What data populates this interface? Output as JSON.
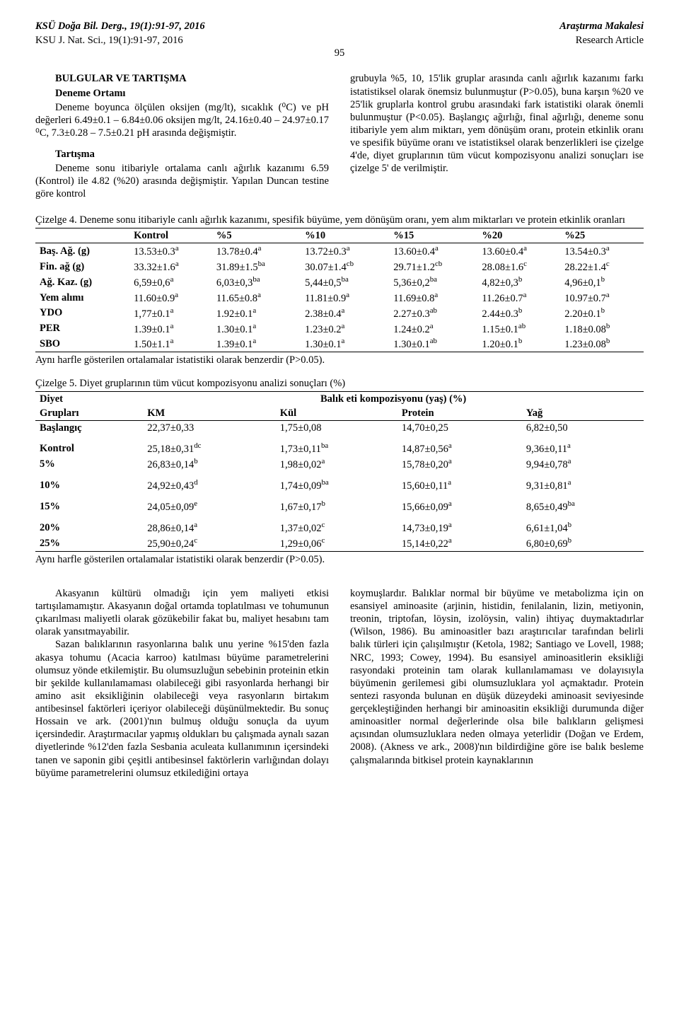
{
  "header": {
    "left1_bold": "KSÜ Doğa Bil. Derg., 19(1):91-97, 2016",
    "left2": "KSU J. Nat. Sci., 19(1):91-97, 2016",
    "right1": "Araştırma Makalesi",
    "right2": "Research Article",
    "page_num": "95"
  },
  "left_col": {
    "title1": "BULGULAR VE TARTIŞMA",
    "title2": "Deneme Ortamı",
    "p1": "Deneme boyunca ölçülen oksijen (mg/lt), sıcaklık (⁰C) ve pH değerleri 6.49±0.1 – 6.84±0.06 oksijen mg/lt, 24.16±0.40 – 24.97±0.17 ⁰C, 7.3±0.28 – 7.5±0.21 pH arasında değişmiştir.",
    "title3": "Tartışma",
    "p2": "Deneme sonu itibariyle ortalama canlı ağırlık kazanımı 6.59 (Kontrol) ile 4.82 (%20) arasında değişmiştir. Yapılan Duncan testine göre kontrol"
  },
  "right_col": {
    "p1": "grubuyla %5, 10, 15'lik gruplar arasında canlı ağırlık kazanımı farkı istatistiksel olarak önemsiz bulunmuştur (P>0.05), buna karşın %20 ve 25'lik gruplarla kontrol grubu arasındaki fark istatistiki olarak önemli bulunmuştur (P<0.05). Başlangıç ağırlığı, final ağırlığı, deneme sonu itibariyle yem alım miktarı, yem dönüşüm oranı, protein etkinlik oranı ve spesifik büyüme oranı ve istatistiksel olarak benzerlikleri ise çizelge 4'de, diyet gruplarının tüm vücut kompozisyonu analizi sonuçları ise çizelge 5' de verilmiştir."
  },
  "table4": {
    "caption": "Çizelge 4. Deneme sonu itibariyle canlı ağırlık kazanımı, spesifik büyüme, yem dönüşüm oranı, yem alım miktarları ve protein etkinlik oranları",
    "headers": [
      "",
      "Kontrol",
      "%5",
      "%10",
      "%15",
      "%20",
      "%25"
    ],
    "rows": [
      {
        "label": "Baş. Ağ. (g)",
        "cells": [
          "13.53±0.3",
          "13.78±0.4",
          "13.72±0.3",
          "13.60±0.4",
          "13.60±0.4",
          "13.54±0.3"
        ],
        "sups": [
          "a",
          "a",
          "a",
          "a",
          "a",
          "a"
        ]
      },
      {
        "label": "Fin. ağ (g)",
        "cells": [
          "33.32±1.6",
          "31.89±1.5",
          "30.07±1.4",
          "29.71±1.2",
          "28.08±1.6",
          "28.22±1.4"
        ],
        "sups": [
          "a",
          "ba",
          "cb",
          "cb",
          "c",
          "c"
        ]
      },
      {
        "label": "Ağ. Kaz. (g)",
        "cells": [
          "6,59±0,6",
          "6,03±0,3",
          "5,44±0,5",
          "5,36±0,2",
          "4,82±0,3",
          "4,96±0,1"
        ],
        "sups": [
          "a",
          "ba",
          "ba",
          "ba",
          "b",
          "b"
        ]
      },
      {
        "label": "Yem alımı",
        "cells": [
          "11.60±0.9",
          "11.65±0.8",
          "11.81±0.9",
          "11.69±0.8",
          "11.26±0.7",
          "10.97±0.7"
        ],
        "sups": [
          "a",
          "a",
          "a",
          "a",
          "a",
          "a"
        ]
      },
      {
        "label": "YDO",
        "cells": [
          "1,77±0.1",
          "1.92±0.1",
          "2.38±0.4",
          "2.27±0.3",
          "2.44±0.3",
          "2.20±0.1"
        ],
        "sups": [
          "a",
          "a",
          "a",
          "ab",
          "b",
          "b"
        ]
      },
      {
        "label": "PER",
        "cells": [
          "1.39±0.1",
          "1.30±0.1",
          "1.23±0.2",
          "1.24±0.2",
          "1.15±0.1",
          "1.18±0.08"
        ],
        "sups": [
          "a",
          "a",
          "a",
          "a",
          "ab",
          "b"
        ]
      },
      {
        "label": "SBO",
        "cells": [
          "1.50±1.1",
          "1.39±0.1",
          "1.30±0.1",
          "1.30±0.1",
          "1.20±0.1",
          "1.23±0.08"
        ],
        "sups": [
          "a",
          "a",
          "a",
          "ab",
          "b",
          "b"
        ]
      }
    ],
    "footnote": "Aynı harfle gösterilen ortalamalar istatistiki olarak benzerdir (P>0.05)."
  },
  "table5": {
    "caption": "Çizelge 5. Diyet gruplarının tüm vücut kompozisyonu analizi sonuçları (%)",
    "h1_left": "Diyet",
    "h1_right": "Balık eti kompozisyonu (yaş) (%)",
    "h2": [
      "Grupları",
      "KM",
      "Kül",
      "Protein",
      "Yağ"
    ],
    "rows": [
      {
        "label": "Başlangıç",
        "cells": [
          "22,37±0,33",
          "1,75±0,08",
          "14,70±0,25",
          "6,82±0,50"
        ],
        "sups": [
          "",
          "",
          "",
          ""
        ]
      },
      {
        "label": "Kontrol",
        "cells": [
          "25,18±0,31",
          "1,73±0,11",
          "14,87±0,56",
          "9,36±0,11"
        ],
        "sups": [
          "dc",
          "ba",
          "a",
          "a"
        ]
      },
      {
        "label": "5%",
        "cells": [
          "26,83±0,14",
          "1,98±0,02",
          "15,78±0,20",
          "9,94±0,78"
        ],
        "sups": [
          "b",
          "a",
          "a",
          "a"
        ]
      },
      {
        "label": "10%",
        "cells": [
          "24,92±0,43",
          "1,74±0,09",
          "15,60±0,11",
          "9,31±0,81"
        ],
        "sups": [
          "d",
          "ba",
          "a",
          "a"
        ]
      },
      {
        "label": "15%",
        "cells": [
          "24,05±0,09",
          "1,67±0,17",
          "15,66±0,09",
          "8,65±0,49"
        ],
        "sups": [
          "e",
          "b",
          "a",
          "ba"
        ]
      },
      {
        "label": "20%",
        "cells": [
          "28,86±0,14",
          "1,37±0,02",
          "14,73±0,19",
          "6,61±1,04"
        ],
        "sups": [
          "a",
          "c",
          "a",
          "b"
        ]
      },
      {
        "label": "25%",
        "cells": [
          "25,90±0,24",
          "1,29±0,06",
          "15,14±0,22",
          "6,80±0,69"
        ],
        "sups": [
          "c",
          "c",
          "a",
          "b"
        ]
      }
    ],
    "footnote": "Aynı harfle gösterilen ortalamalar istatistiki olarak benzerdir (P>0.05)."
  },
  "bottom_left": {
    "p1": "Akasyanın kültürü olmadığı için yem maliyeti etkisi tartışılamamıştır. Akasyanın doğal ortamda toplatılması ve tohumunun çıkarılması maliyetli olarak gözükebilir fakat bu, maliyet hesabını tam olarak yansıtmayabilir.",
    "p2": "Sazan balıklarının rasyonlarına balık unu yerine %15'den fazla akasya tohumu (Acacia karroo) katılması büyüme parametrelerini olumsuz yönde etkilemiştir. Bu olumsuzluğun sebebinin proteinin etkin bir şekilde kullanılamaması olabileceği gibi rasyonlarda herhangi bir amino asit eksikliğinin olabileceği veya rasyonların birtakım antibesinsel faktörleri içeriyor olabileceği düşünülmektedir. Bu sonuç Hossain ve ark. (2001)'nın bulmuş olduğu sonuçla da uyum içersindedir. Araştırmacılar yapmış oldukları bu çalışmada aynalı sazan diyetlerinde %12'den fazla Sesbania aculeata kullanımının içersindeki tanen ve saponin gibi çeşitli antibesinsel faktörlerin varlığından dolayı büyüme parametrelerini   olumsuz   etkilediğini   ortaya"
  },
  "bottom_right": {
    "p1": "koymuşlardır.   Balıklar   normal   bir   büyüme   ve metabolizma için on esansiyel aminoasite (arjinin, histidin, fenilalanin, lizin, metiyonin, treonin, triptofan, löysin, izolöysin, valin) ihtiyaç duymaktadırlar (Wilson, 1986). Bu aminoasitler bazı araştırıcılar tarafından belirli balık türleri için çalışılmıştır (Ketola, 1982; Santiago ve Lovell, 1988; NRC, 1993; Cowey, 1994). Bu esansiyel aminoasitlerin eksikliği rasyondaki proteinin tam olarak kullanılamaması ve dolayısıyla büyümenin gerilemesi gibi olumsuzluklara yol açmaktadır. Protein sentezi rasyonda bulunan en düşük düzeydeki aminoasit seviyesinde gerçekleştiğinden herhangi bir aminoasitin eksikliği durumunda diğer aminoasitler normal değerlerinde olsa bile balıkların gelişmesi açısından olumsuzluklara neden olmaya yeterlidir (Doğan ve Erdem, 2008). (Akness ve ark., 2008)'nın bildirdiğine göre ise balık besleme çalışmalarında bitkisel protein kaynaklarının"
  }
}
